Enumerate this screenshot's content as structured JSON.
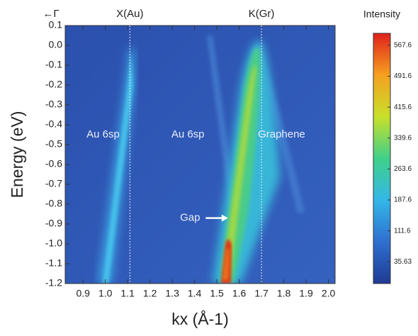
{
  "chart_data": {
    "type": "heatmap",
    "x_label": "kx (Å-1)",
    "y_label": "Energy (eV)",
    "xlim": [
      0.82,
      2.03
    ],
    "xticks": [
      0.9,
      {
        "value": 1,
        "label": "1.0"
      },
      1.1,
      1.2,
      1.3,
      1.4,
      1.5,
      1.6,
      1.7,
      1.8,
      1.9,
      {
        "value": 2,
        "label": "2.0"
      }
    ],
    "ylim": [
      -1.2,
      0.1
    ],
    "yticks": [
      0.1,
      {
        "value": 0,
        "label": "0.0"
      },
      -0.1,
      -0.2,
      -0.3,
      -0.4,
      -0.5,
      -0.6,
      -0.7,
      -0.8,
      -0.9,
      {
        "value": -1,
        "label": "-1.0"
      },
      -1.1,
      -1.2
    ],
    "top_labels": [
      {
        "text": "←Γ"
      },
      {
        "text": "X(Au)",
        "x": 1.11
      },
      {
        "text": "K(Gr)",
        "x": 1.7
      }
    ],
    "annotations": [
      {
        "text": "Au 6sp",
        "x": 0.99,
        "y": -0.45
      },
      {
        "text": "Au 6sp",
        "x": 1.37,
        "y": -0.45
      },
      {
        "text": "Graphene",
        "x": 1.79,
        "y": -0.45
      },
      {
        "text": "Gap",
        "x": 1.38,
        "y": -0.87,
        "arrow_to": [
          1.55,
          -0.87
        ]
      }
    ],
    "colorbar": {
      "label": "Intensity",
      "lim": [
        -18,
        597
      ],
      "ticks": [
        35.63,
        111.6,
        187.6,
        263.6,
        339.6,
        415.6,
        491.6,
        567.6
      ],
      "colors": [
        "#1f3a93",
        "#2f6fd0",
        "#33b7e8",
        "#3fd08a",
        "#c8e02a",
        "#f5a020",
        "#e0201c"
      ]
    }
  }
}
